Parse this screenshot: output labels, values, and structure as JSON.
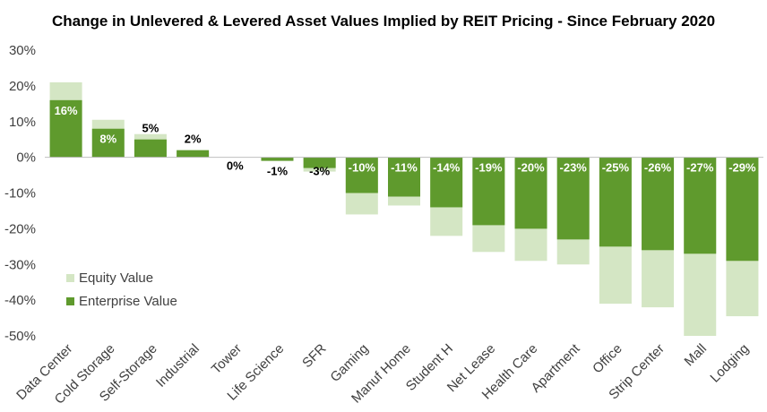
{
  "chart_data": {
    "type": "bar",
    "title": "Change in Unlevered & Levered Asset Values Implied by REIT Pricing - Since February 2020",
    "categories": [
      "Data Center",
      "Cold Storage",
      "Self-Storage",
      "Industrial",
      "Tower",
      "Life Science",
      "SFR",
      "Gaming",
      "Manuf Home",
      "Student H",
      "Net Lease",
      "Health Care",
      "Apartment",
      "Office",
      "Strip Center",
      "Mall",
      "Lodging"
    ],
    "series": [
      {
        "name": "Equity Value",
        "color": "#d4e6c4",
        "values": [
          21,
          10.5,
          6.5,
          1.5,
          0,
          -0.5,
          -4,
          -16,
          -13.5,
          -22,
          -26.5,
          -29,
          -30,
          -41,
          -42,
          -50,
          -44.5
        ]
      },
      {
        "name": "Enterprise Value",
        "color": "#5f9a2d",
        "values": [
          16,
          8,
          5,
          2,
          0,
          -1,
          -3,
          -10,
          -11,
          -14,
          -19,
          -20,
          -23,
          -25,
          -26,
          -27,
          -29
        ]
      }
    ],
    "data_labels": [
      "16%",
      "8%",
      "5%",
      "2%",
      "0%",
      "-1%",
      "-3%",
      "-10%",
      "-11%",
      "-14%",
      "-19%",
      "-20%",
      "-23%",
      "-25%",
      "-26%",
      "-27%",
      "-29%"
    ],
    "yticks": [
      "30%",
      "20%",
      "10%",
      "0%",
      "-10%",
      "-20%",
      "-30%",
      "-40%",
      "-50%"
    ],
    "ylim": [
      -50,
      30
    ],
    "xlabel": "",
    "ylabel": "",
    "legend": "bottom-left",
    "grid": false
  }
}
